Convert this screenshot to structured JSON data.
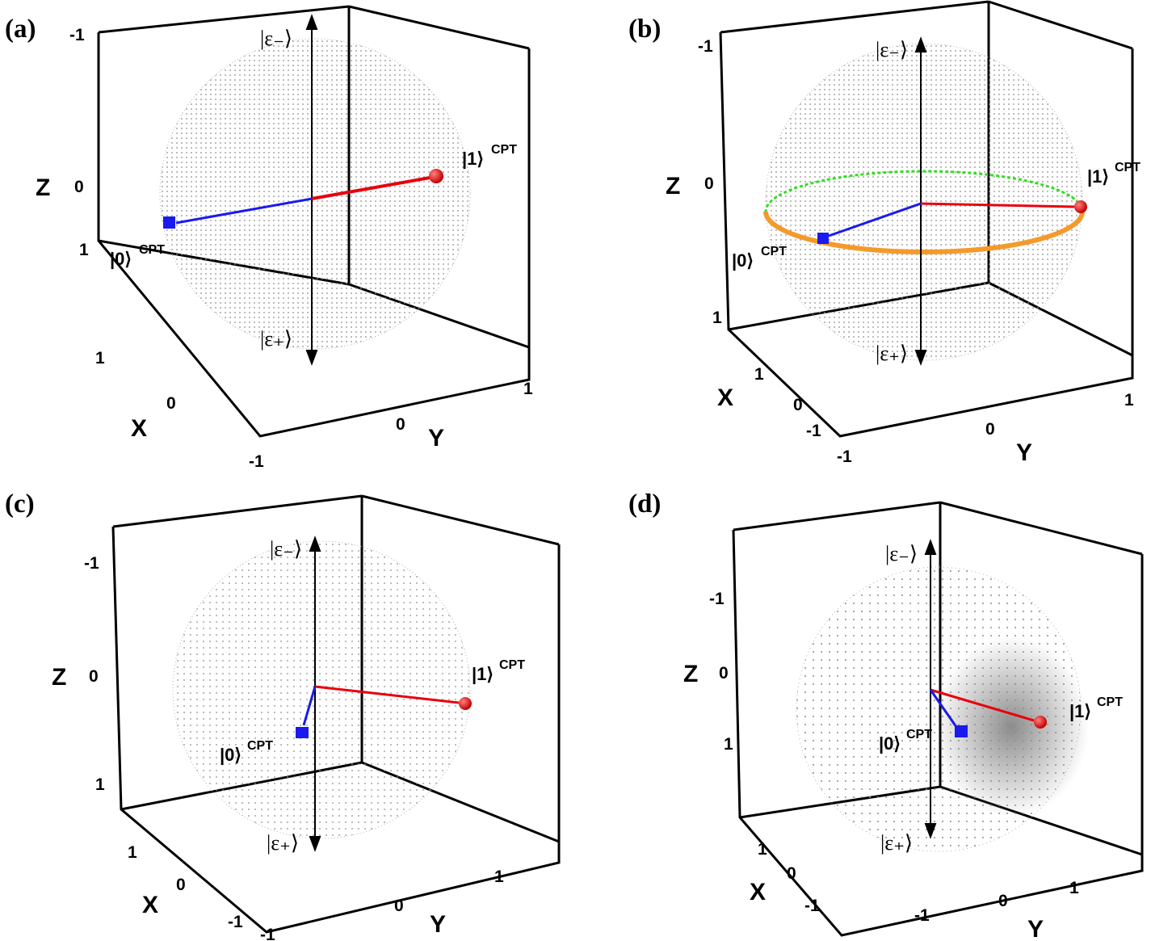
{
  "panels": [
    {
      "label": "(a)",
      "z_ticks": [
        "-1",
        "0",
        "1"
      ],
      "x_ticks": [
        "1",
        "0",
        "-1"
      ],
      "y_ticks": [
        "0",
        "1"
      ],
      "x_axis": "X",
      "y_axis": "Y",
      "z_axis": "Z",
      "states": {
        "eps_minus": "|ε₋⟩",
        "eps_plus": "|ε₊⟩",
        "one": "|1⟩",
        "zero": "|0⟩",
        "sup": "CPT"
      }
    },
    {
      "label": "(b)",
      "z_ticks": [
        "-1",
        "0",
        "1"
      ],
      "x_ticks": [
        "1",
        "0",
        "-1"
      ],
      "y_ticks": [
        "-1",
        "0",
        "1"
      ],
      "x_axis": "X",
      "y_axis": "Y",
      "z_axis": "Z",
      "states": {
        "eps_minus": "|ε₋⟩",
        "eps_plus": "|ε₊⟩",
        "one": "|1⟩",
        "zero": "|0⟩",
        "sup": "CPT"
      }
    },
    {
      "label": "(c)",
      "z_ticks": [
        "-1",
        "0",
        "1"
      ],
      "x_ticks": [
        "1",
        "0",
        "-1"
      ],
      "y_ticks": [
        "-1",
        "0",
        "1"
      ],
      "x_axis": "X",
      "y_axis": "Y",
      "z_axis": "Z",
      "states": {
        "eps_minus": "|ε₋⟩",
        "eps_plus": "|ε₊⟩",
        "one": "|1⟩",
        "zero": "|0⟩",
        "sup": "CPT"
      }
    },
    {
      "label": "(d)",
      "z_ticks": [
        "-1",
        "0",
        "1"
      ],
      "x_ticks": [
        "1",
        "0",
        "-1"
      ],
      "y_ticks": [
        "-1",
        "0",
        "1"
      ],
      "x_axis": "X",
      "y_axis": "Y",
      "z_axis": "Z",
      "states": {
        "eps_minus": "|ε₋⟩",
        "eps_plus": "|ε₊⟩",
        "one": "|1⟩",
        "zero": "|0⟩",
        "sup": "CPT"
      }
    }
  ],
  "colors": {
    "one_vector": "#e8000b",
    "zero_vector": "#1a1aee",
    "sphere_dots": "#8c8c8c",
    "upper_ring": "#33dd22",
    "lower_ring": "#f59a2a"
  }
}
